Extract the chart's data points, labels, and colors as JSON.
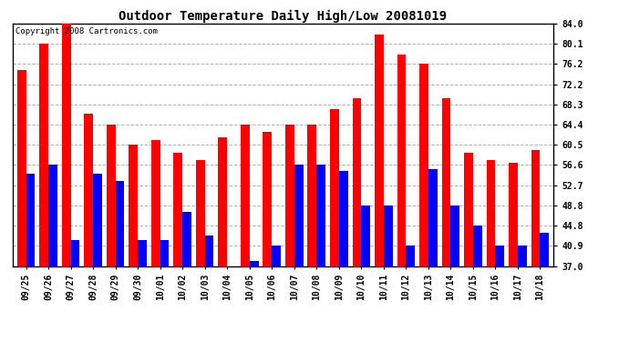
{
  "title": "Outdoor Temperature Daily High/Low 20081019",
  "copyright": "Copyright 2008 Cartronics.com",
  "dates": [
    "09/25",
    "09/26",
    "09/27",
    "09/28",
    "09/29",
    "09/30",
    "10/01",
    "10/02",
    "10/03",
    "10/04",
    "10/05",
    "10/06",
    "10/07",
    "10/08",
    "10/09",
    "10/10",
    "10/11",
    "10/12",
    "10/13",
    "10/14",
    "10/15",
    "10/16",
    "10/17",
    "10/18"
  ],
  "highs": [
    75.0,
    80.1,
    84.0,
    66.5,
    64.4,
    60.5,
    61.5,
    59.0,
    57.5,
    62.0,
    64.4,
    63.0,
    64.4,
    64.4,
    67.5,
    69.5,
    82.0,
    78.0,
    76.2,
    69.5,
    59.0,
    57.5,
    57.0,
    59.5
  ],
  "lows": [
    55.0,
    56.6,
    42.0,
    55.0,
    53.5,
    42.0,
    42.0,
    47.5,
    43.0,
    37.0,
    38.0,
    40.9,
    56.6,
    56.6,
    55.5,
    48.8,
    48.8,
    40.9,
    55.8,
    48.8,
    44.8,
    40.9,
    40.9,
    43.5
  ],
  "high_color": "#ff0000",
  "low_color": "#0000ff",
  "bg_color": "#ffffff",
  "grid_color": "#b0b0b0",
  "yticks": [
    37.0,
    40.9,
    44.8,
    48.8,
    52.7,
    56.6,
    60.5,
    64.4,
    68.3,
    72.2,
    76.2,
    80.1,
    84.0
  ],
  "ymin": 37.0,
  "ymax": 84.0,
  "title_fontsize": 10,
  "copyright_fontsize": 6.5,
  "tick_fontsize": 7,
  "bar_width": 0.4
}
